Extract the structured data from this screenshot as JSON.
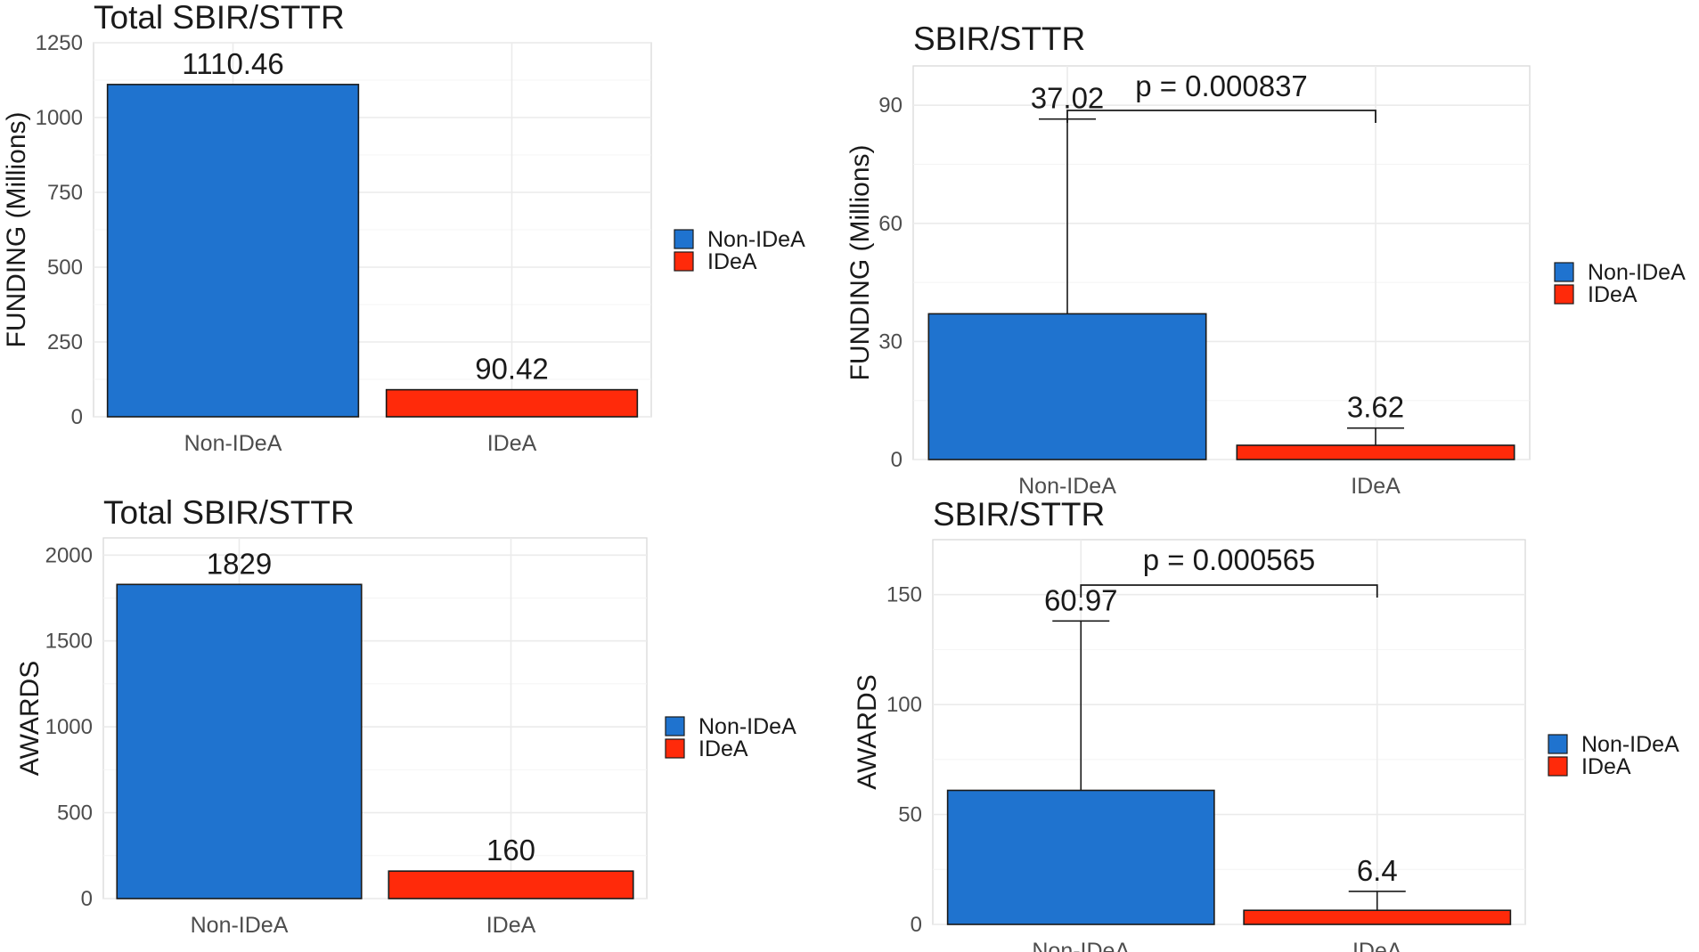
{
  "colors": {
    "non_idea": "#1f73cf",
    "idea": "#ff2a0a",
    "grid": "#ebebeb",
    "panel_border": "#d9d9d9",
    "text": "#1a1a1a",
    "axis_text": "#4d4d4d"
  },
  "legend": {
    "entries": [
      "Non-IDeA",
      "IDeA"
    ]
  },
  "chart_data": [
    {
      "id": "total-funding",
      "type": "bar",
      "title": "Total SBIR/STTR",
      "xlabel": "",
      "ylabel": "FUNDING (Millions)",
      "categories": [
        "Non-IDeA",
        "IDeA"
      ],
      "values": [
        1110.46,
        90.42
      ],
      "value_labels": [
        "1110.46",
        "90.42"
      ],
      "ylim": [
        0,
        1250
      ],
      "yticks": [
        0,
        250,
        500,
        750,
        1000,
        1250
      ],
      "grid": true,
      "legend": "right"
    },
    {
      "id": "mean-funding",
      "type": "bar",
      "title": "SBIR/STTR",
      "xlabel": "",
      "ylabel": "FUNDING (Millions)",
      "categories": [
        "Non-IDeA",
        "IDeA"
      ],
      "values": [
        37.02,
        3.62
      ],
      "value_labels": [
        "37.02",
        "3.62"
      ],
      "error_upper": [
        86.5,
        8.0
      ],
      "ylim": [
        0,
        100
      ],
      "yticks": [
        0,
        30,
        60,
        90
      ],
      "pvalue": "p = 0.000837",
      "grid": true,
      "legend": "right"
    },
    {
      "id": "total-awards",
      "type": "bar",
      "title": "Total SBIR/STTR",
      "xlabel": "",
      "ylabel": "AWARDS",
      "categories": [
        "Non-IDeA",
        "IDeA"
      ],
      "values": [
        1829,
        160
      ],
      "value_labels": [
        "1829",
        "160"
      ],
      "ylim": [
        0,
        2100
      ],
      "yticks": [
        0,
        500,
        1000,
        1500,
        2000
      ],
      "grid": true,
      "legend": "right"
    },
    {
      "id": "mean-awards",
      "type": "bar",
      "title": "SBIR/STTR",
      "xlabel": "",
      "ylabel": "AWARDS",
      "categories": [
        "Non-IDeA",
        "IDeA"
      ],
      "values": [
        60.97,
        6.4
      ],
      "value_labels": [
        "60.97",
        "6.4"
      ],
      "error_upper": [
        138,
        15
      ],
      "ylim": [
        0,
        175
      ],
      "yticks": [
        0,
        50,
        100,
        150
      ],
      "pvalue": "p = 0.000565",
      "grid": true,
      "legend": "right"
    }
  ]
}
